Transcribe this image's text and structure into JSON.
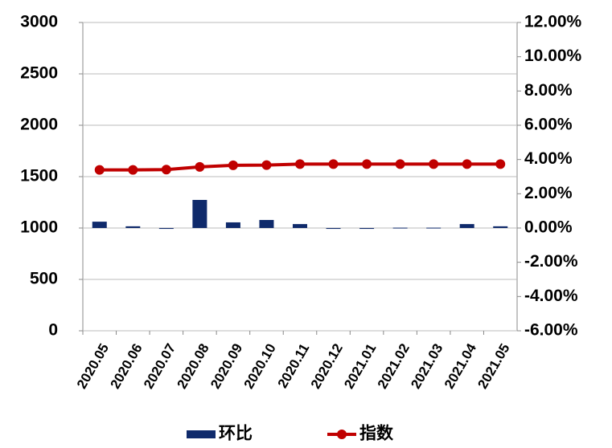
{
  "chart_data": {
    "type": "bar-line",
    "categories": [
      "2020.05",
      "2020.06",
      "2020.07",
      "2020.08",
      "2020.09",
      "2020.10",
      "2020.11",
      "2020.12",
      "2021.01",
      "2021.02",
      "2021.03",
      "2021.04",
      "2021.05"
    ],
    "series": [
      {
        "name": "环比",
        "type": "bar",
        "axis": "y2",
        "color": "#0f2a6b",
        "values": [
          0.37,
          0.1,
          -0.05,
          1.64,
          0.33,
          0.47,
          0.23,
          -0.05,
          -0.05,
          0.02,
          0.02,
          0.23,
          0.1
        ]
      },
      {
        "name": "指数",
        "type": "line",
        "axis": "y",
        "color": "#c00000",
        "values": [
          1565,
          1565,
          1568,
          1595,
          1610,
          1612,
          1622,
          1622,
          1622,
          1622,
          1622,
          1622,
          1622
        ]
      }
    ],
    "ylim": [
      0,
      3000
    ],
    "yticks": [
      0,
      500,
      1000,
      1500,
      2000,
      2500,
      3000
    ],
    "y2lim": [
      -6,
      12
    ],
    "y2ticks": [
      {
        "value": -6,
        "label": "-6.00%"
      },
      {
        "value": -4,
        "label": "-4.00%"
      },
      {
        "value": -2,
        "label": "-2.00%"
      },
      {
        "value": 0,
        "label": "0.00%"
      },
      {
        "value": 2,
        "label": "2.00%"
      },
      {
        "value": 4,
        "label": "4.00%"
      },
      {
        "value": 6,
        "label": "6.00%"
      },
      {
        "value": 8,
        "label": "8.00%"
      },
      {
        "value": 10,
        "label": "10.00%"
      },
      {
        "value": 12,
        "label": "12.00%"
      }
    ],
    "grid": true,
    "legend": "bottom"
  }
}
